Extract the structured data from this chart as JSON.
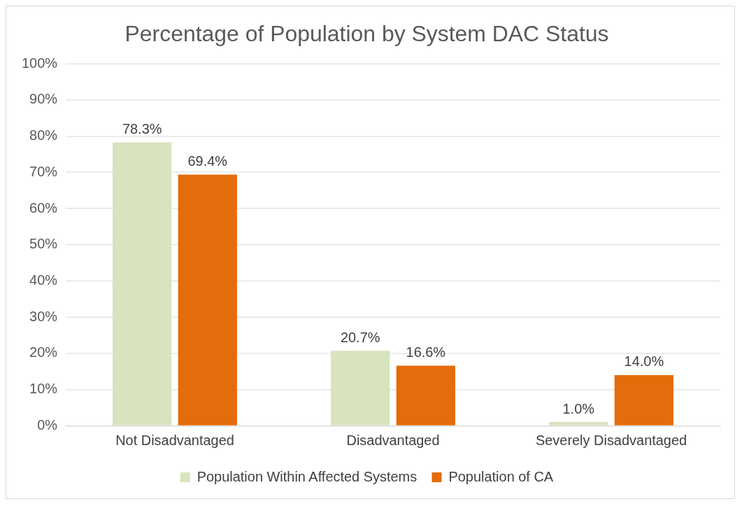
{
  "chart_data": {
    "type": "bar",
    "title": "Percentage of Population by System DAC Status",
    "categories": [
      "Not Disadvantaged",
      "Disadvantaged",
      "Severely Disadvantaged"
    ],
    "series": [
      {
        "name": "Population Within Affected Systems",
        "color": "#d7e4bd",
        "values": [
          78.3,
          20.7,
          1.0
        ],
        "value_labels": [
          "78.3%",
          "20.7%",
          "1.0%"
        ]
      },
      {
        "name": "Population of CA",
        "color": "#e46c0a",
        "values": [
          69.4,
          16.6,
          14.0
        ],
        "value_labels": [
          "69.4%",
          "16.6%",
          "14.0%"
        ]
      }
    ],
    "ylim": [
      0,
      100
    ],
    "yticks": [
      {
        "value": 0,
        "label": "0%"
      },
      {
        "value": 10,
        "label": "10%"
      },
      {
        "value": 20,
        "label": "20%"
      },
      {
        "value": 30,
        "label": "30%"
      },
      {
        "value": 40,
        "label": "40%"
      },
      {
        "value": 50,
        "label": "50%"
      },
      {
        "value": 60,
        "label": "60%"
      },
      {
        "value": 70,
        "label": "70%"
      },
      {
        "value": 80,
        "label": "80%"
      },
      {
        "value": 90,
        "label": "90%"
      },
      {
        "value": 100,
        "label": "100%"
      }
    ],
    "grid": "y",
    "legend": "bottom"
  }
}
